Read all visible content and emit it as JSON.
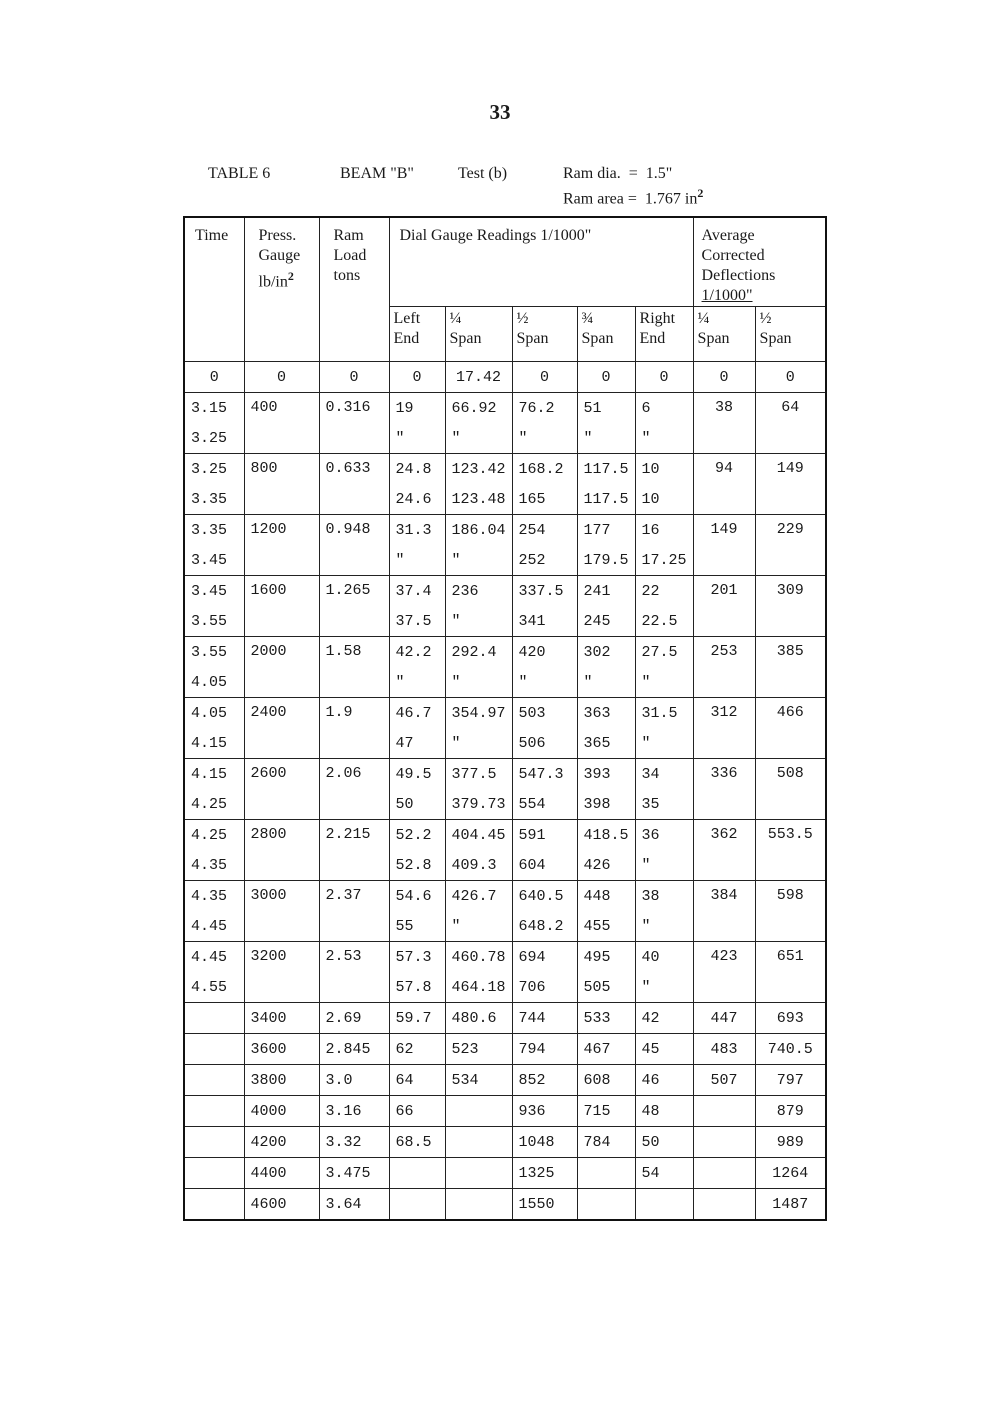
{
  "page_number": "33",
  "caption": {
    "table_label": "TABLE 6",
    "beam": "BEAM \"B\"",
    "test": "Test (b)",
    "ram_dia": "Ram dia.  =  1.5\"",
    "ram_area": "Ram area =  1.767 in",
    "ram_area_exp": "2"
  },
  "headers": {
    "time": "Time",
    "press_1": "Press.",
    "press_2": "Gauge",
    "press_3": "lb/in",
    "press_exp": "2",
    "ram_1": "Ram",
    "ram_2": "Load",
    "ram_3": "tons",
    "dial": "Dial Gauge Readings 1/1000\"",
    "avg_1": "Average",
    "avg_2": "Corrected",
    "avg_3": "Deflections",
    "avg_4": "1/1000\"",
    "sub": [
      {
        "top": "Left",
        "bottom": "End"
      },
      {
        "top": "¼",
        "bottom": "Span"
      },
      {
        "top": "½",
        "bottom": "Span"
      },
      {
        "top": "¾",
        "bottom": "Span"
      },
      {
        "top": "Right",
        "bottom": "End"
      },
      {
        "top": "¼",
        "bottom": "Span"
      },
      {
        "top": "½",
        "bottom": "Span"
      }
    ]
  },
  "rows": [
    {
      "press": "0",
      "load": "0",
      "avg_q": "0",
      "avg_h": "0",
      "readings": [
        {
          "time": "0",
          "left": "0",
          "q1": "17.42",
          "half": "0",
          "q3": "0",
          "right": "0"
        }
      ]
    },
    {
      "press": "400",
      "load": "0.316",
      "avg_q": "38",
      "avg_h": "64",
      "readings": [
        {
          "time": "3.15",
          "left": "19",
          "q1": "66.92",
          "half": "76.2",
          "q3": "51",
          "right": "6"
        },
        {
          "time": "3.25",
          "left": "\"",
          "q1": "\"",
          "half": "\"",
          "q3": "\"",
          "right": "\""
        }
      ]
    },
    {
      "press": "800",
      "load": "0.633",
      "avg_q": "94",
      "avg_h": "149",
      "readings": [
        {
          "time": "3.25",
          "left": "24.8",
          "q1": "123.42",
          "half": "168.2",
          "q3": "117.5",
          "right": "10"
        },
        {
          "time": "3.35",
          "left": "24.6",
          "q1": "123.48",
          "half": "165",
          "q3": "117.5",
          "right": "10"
        }
      ]
    },
    {
      "press": "1200",
      "load": "0.948",
      "avg_q": "149",
      "avg_h": "229",
      "readings": [
        {
          "time": "3.35",
          "left": "31.3",
          "q1": "186.04",
          "half": "254",
          "q3": "177",
          "right": "16"
        },
        {
          "time": "3.45",
          "left": "\"",
          "q1": "\"",
          "half": "252",
          "q3": "179.5",
          "right": "17.25"
        }
      ]
    },
    {
      "press": "1600",
      "load": "1.265",
      "avg_q": "201",
      "avg_h": "309",
      "readings": [
        {
          "time": "3.45",
          "left": "37.4",
          "q1": "236",
          "half": "337.5",
          "q3": "241",
          "right": "22"
        },
        {
          "time": "3.55",
          "left": "37.5",
          "q1": "\"",
          "half": "341",
          "q3": "245",
          "right": "22.5"
        }
      ]
    },
    {
      "press": "2000",
      "load": "1.58",
      "avg_q": "253",
      "avg_h": "385",
      "readings": [
        {
          "time": "3.55",
          "left": "42.2",
          "q1": "292.4",
          "half": "420",
          "q3": "302",
          "right": "27.5"
        },
        {
          "time": "4.05",
          "left": "\"",
          "q1": "\"",
          "half": "\"",
          "q3": "\"",
          "right": "\""
        }
      ]
    },
    {
      "press": "2400",
      "load": "1.9",
      "avg_q": "312",
      "avg_h": "466",
      "readings": [
        {
          "time": "4.05",
          "left": "46.7",
          "q1": "354.97",
          "half": "503",
          "q3": "363",
          "right": "31.5"
        },
        {
          "time": "4.15",
          "left": "47",
          "q1": "\"",
          "half": "506",
          "q3": "365",
          "right": "\""
        }
      ]
    },
    {
      "press": "2600",
      "load": "2.06",
      "avg_q": "336",
      "avg_h": "508",
      "readings": [
        {
          "time": "4.15",
          "left": "49.5",
          "q1": "377.5",
          "half": "547.3",
          "q3": "393",
          "right": "34"
        },
        {
          "time": "4.25",
          "left": "50",
          "q1": "379.73",
          "half": "554",
          "q3": "398",
          "right": "35"
        }
      ]
    },
    {
      "press": "2800",
      "load": "2.215",
      "avg_q": "362",
      "avg_h": "553.5",
      "readings": [
        {
          "time": "4.25",
          "left": "52.2",
          "q1": "404.45",
          "half": "591",
          "q3": "418.5",
          "right": "36"
        },
        {
          "time": "4.35",
          "left": "52.8",
          "q1": "409.3",
          "half": "604",
          "q3": "426",
          "right": "\""
        }
      ]
    },
    {
      "press": "3000",
      "load": "2.37",
      "avg_q": "384",
      "avg_h": "598",
      "readings": [
        {
          "time": "4.35",
          "left": "54.6",
          "q1": "426.7",
          "half": "640.5",
          "q3": "448",
          "right": "38"
        },
        {
          "time": "4.45",
          "left": "55",
          "q1": "\"",
          "half": "648.2",
          "q3": "455",
          "right": "\""
        }
      ]
    },
    {
      "press": "3200",
      "load": "2.53",
      "avg_q": "423",
      "avg_h": "651",
      "readings": [
        {
          "time": "4.45",
          "left": "57.3",
          "q1": "460.78",
          "half": "694",
          "q3": "495",
          "right": "40"
        },
        {
          "time": "4.55",
          "left": "57.8",
          "q1": "464.18",
          "half": "706",
          "q3": "505",
          "right": "\""
        }
      ]
    },
    {
      "press": "3400",
      "load": "2.69",
      "avg_q": "447",
      "avg_h": "693",
      "readings": [
        {
          "time": "",
          "left": "59.7",
          "q1": "480.6",
          "half": "744",
          "q3": "533",
          "right": "42"
        }
      ]
    },
    {
      "press": "3600",
      "load": "2.845",
      "avg_q": "483",
      "avg_h": "740.5",
      "readings": [
        {
          "time": "",
          "left": "62",
          "q1": "523",
          "half": "794",
          "q3": "467",
          "right": "45"
        }
      ]
    },
    {
      "press": "3800",
      "load": "3.0",
      "avg_q": "507",
      "avg_h": "797",
      "readings": [
        {
          "time": "",
          "left": "64",
          "q1": "534",
          "half": "852",
          "q3": "608",
          "right": "46"
        }
      ]
    },
    {
      "press": "4000",
      "load": "3.16",
      "avg_q": "",
      "avg_h": "879",
      "readings": [
        {
          "time": "",
          "left": "66",
          "q1": "",
          "half": "936",
          "q3": "715",
          "right": "48"
        }
      ]
    },
    {
      "press": "4200",
      "load": "3.32",
      "avg_q": "",
      "avg_h": "989",
      "readings": [
        {
          "time": "",
          "left": "68.5",
          "q1": "",
          "half": "1048",
          "q3": "784",
          "right": "50"
        }
      ]
    },
    {
      "press": "4400",
      "load": "3.475",
      "avg_q": "",
      "avg_h": "1264",
      "readings": [
        {
          "time": "",
          "left": "",
          "q1": "",
          "half": "1325",
          "q3": "",
          "right": "54"
        }
      ]
    },
    {
      "press": "4600",
      "load": "3.64",
      "avg_q": "",
      "avg_h": "1487",
      "readings": [
        {
          "time": "",
          "left": "",
          "q1": "",
          "half": "1550",
          "q3": "",
          "right": ""
        }
      ]
    }
  ]
}
